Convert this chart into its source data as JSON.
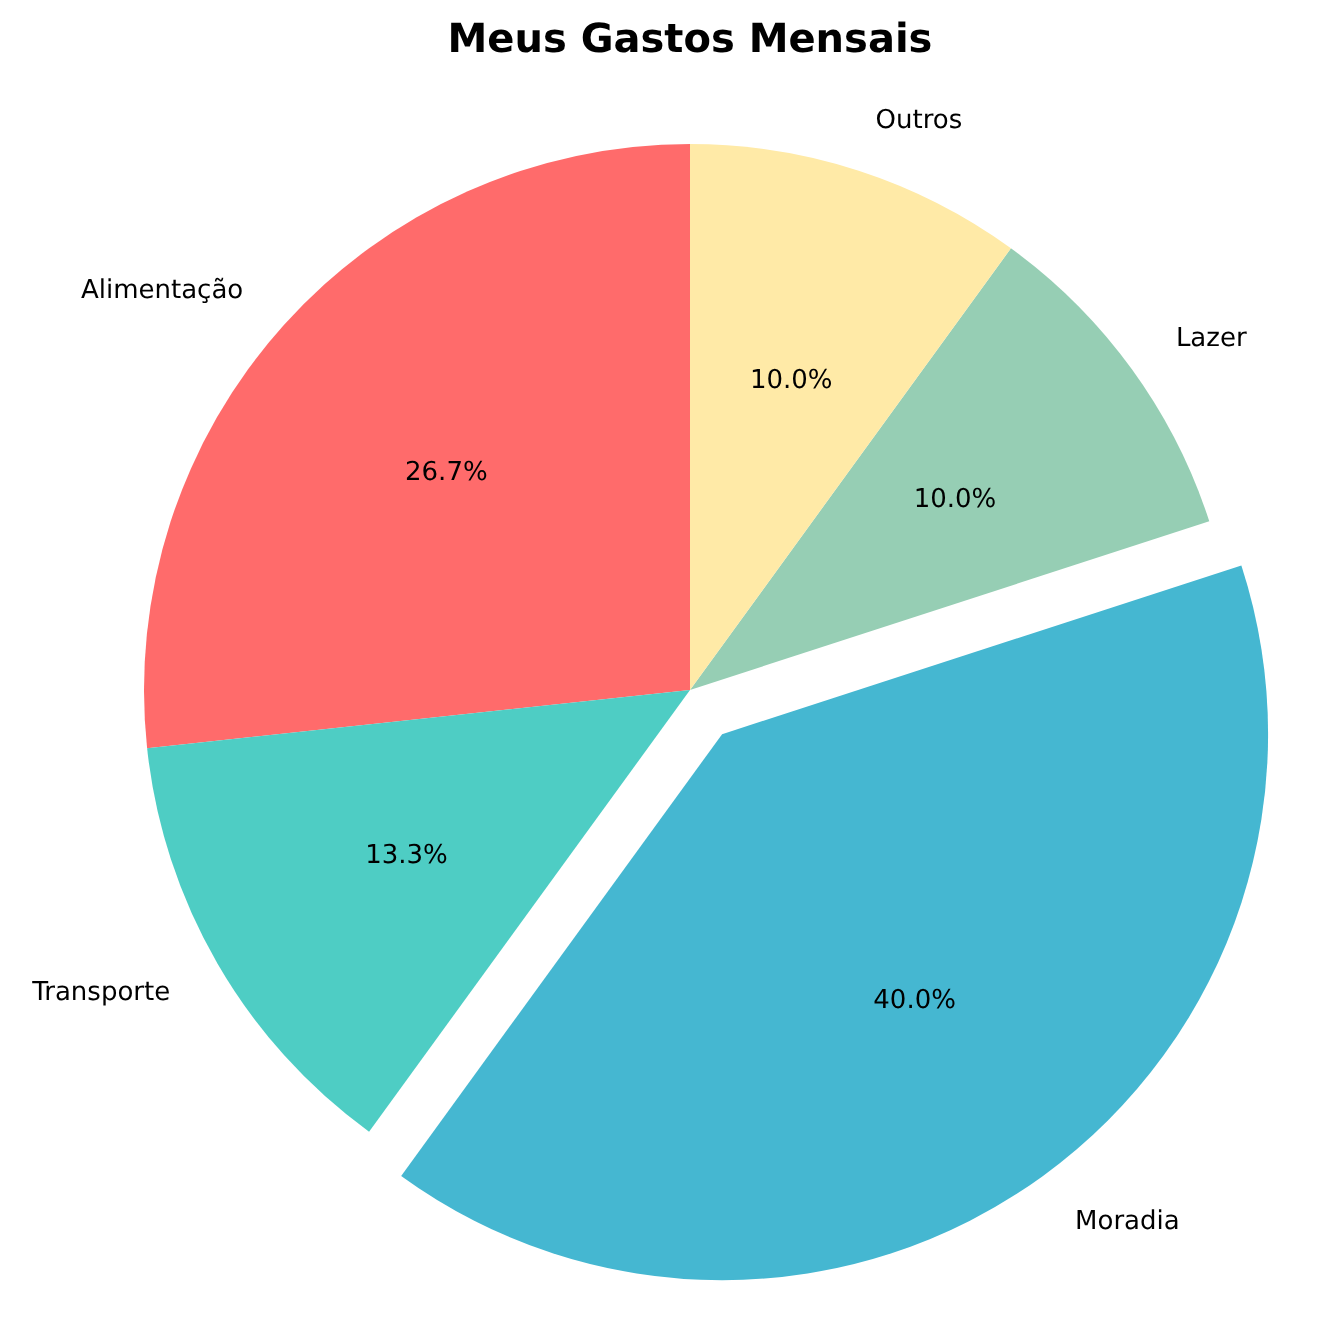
{
  "chart_data": {
    "type": "pie",
    "title": "Meus Gastos Mensais",
    "categories": [
      "Alimentação",
      "Transporte",
      "Moradia",
      "Lazer",
      "Outros"
    ],
    "values": [
      26.7,
      13.3,
      40.0,
      10.0,
      10.0
    ],
    "colors": [
      "#ff6b6b",
      "#4ecdc4",
      "#45b7d1",
      "#96ceb4",
      "#ffeaa7"
    ],
    "value_labels": [
      "26.7%",
      "13.3%",
      "40.0%",
      "10.0%",
      "10.0%"
    ]
  }
}
